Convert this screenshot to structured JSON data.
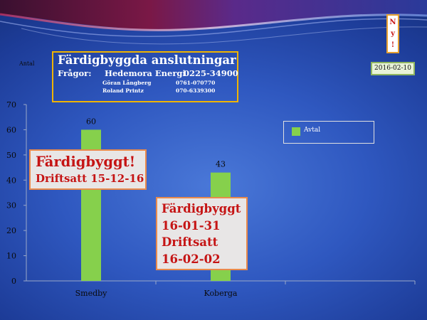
{
  "header": {
    "antal_label": "Antal",
    "title": "Färdigbyggda anslutningar",
    "questions_label": "Frågor:",
    "company": "Hedemora Energi",
    "company_phone": "0225-34900",
    "contacts": [
      {
        "name": "Göran Långberg",
        "phone": "0761-070770"
      },
      {
        "name": "Roland Printz",
        "phone": "070-6339300"
      }
    ],
    "ny_badge": [
      "N",
      "y",
      "!"
    ],
    "date": "2016-02-10"
  },
  "callouts": {
    "smedby": {
      "line1": "Färdigbyggt!",
      "line2": "Driftsatt 15-12-16"
    },
    "koberga": {
      "lines": [
        "Färdigbyggt",
        "16-01-31",
        "Driftsatt",
        "16-02-02"
      ]
    }
  },
  "colors": {
    "bar": "#86d04c",
    "callout_text": "#c51414",
    "callout_border": "#e98a4c",
    "title_border": "#f0b400"
  },
  "chart_data": {
    "type": "bar",
    "categories": [
      "Smedby",
      "Koberga",
      ""
    ],
    "series": [
      {
        "name": "Avtal",
        "values": [
          60,
          43,
          null
        ]
      }
    ],
    "data_labels": [
      "60",
      "43",
      ""
    ],
    "ylim": [
      0,
      70
    ],
    "yticks": [
      0,
      10,
      20,
      30,
      40,
      50,
      60,
      70
    ],
    "ytick_labels": [
      "0",
      "10",
      "20",
      "30",
      "40",
      "50",
      "60",
      "70"
    ],
    "grid": false,
    "legend": "right",
    "title": "Färdigbyggda anslutningar",
    "ylabel": "Antal",
    "xlabel": ""
  }
}
